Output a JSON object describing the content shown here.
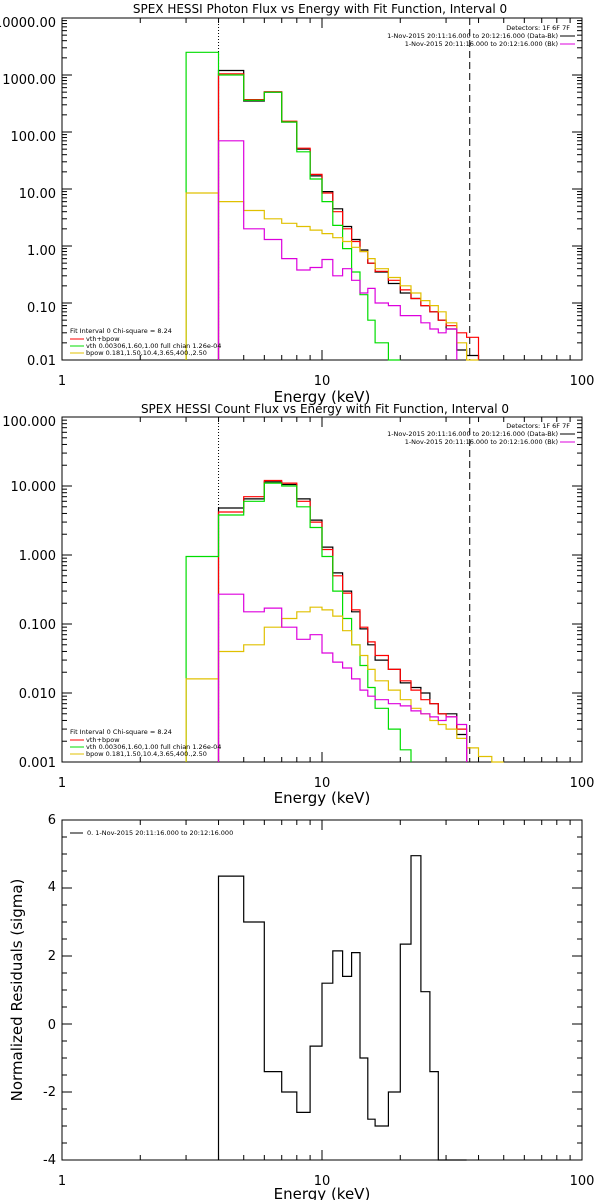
{
  "colors": {
    "data": "#000000",
    "sum": "#ff0000",
    "vth": "#00dd00",
    "bpow": "#e0c000",
    "bk": "#dd00dd"
  },
  "chart_data": [
    {
      "type": "line",
      "title": "SPEX HESSI Photon Flux vs Energy with Fit Function, Interval 0",
      "xlabel": "Energy (keV)",
      "ylabel": "",
      "xscale": "log",
      "yscale": "log",
      "xlim": [
        1,
        100
      ],
      "ylim": [
        0.01,
        10000
      ],
      "x_ticks": [
        "1",
        "10",
        "100"
      ],
      "y_ticks": [
        "0.01",
        "0.10",
        "1.00",
        "10.00",
        "100.00",
        "1000.00",
        "10000.00"
      ],
      "x_tick_values": [
        1,
        10,
        100
      ],
      "y_tick_values": [
        0.01,
        0.1,
        1,
        10,
        100,
        1000,
        10000
      ],
      "energy_range": [
        4.0,
        37.0
      ],
      "legend_topright": [
        "Detectors: 1F 6F 7F",
        "1-Nov-2015 20:11:16.000 to 20:12:16.000 (Data-Bk)",
        "1-Nov-2015 20:11:16.000 to 20:12:16.000 (Bk)"
      ],
      "legend_bottomleft": [
        "Fit Interval 0   Chi-square = 8.24",
        "vth+bpow",
        "vth 0.00306,1.60,1.00  full chian 1.26e-04",
        "bpow 0.181,1.50,10.4,3.65,400.,2.50"
      ],
      "edges": [
        3.0,
        4.0,
        5.0,
        6.0,
        7.0,
        8.0,
        9.0,
        10.0,
        11.0,
        12.0,
        13.0,
        14.0,
        15.0,
        16.0,
        18.0,
        20.0,
        22.0,
        24.0,
        26.0,
        28.0,
        30.0,
        33.0,
        36.0,
        40.0
      ],
      "series": [
        {
          "name": "1-Nov-2015 20:11:16.000 to 20:12:16.000 (Data-Bk)",
          "color_key": "data",
          "values": [
            null,
            1200,
            350,
            500,
            150,
            50,
            17,
            9,
            4.5,
            2.2,
            1.3,
            0.85,
            0.5,
            0.35,
            0.22,
            0.15,
            0.12,
            0.09,
            0.07,
            0.05,
            0.035,
            0.015,
            0.012
          ]
        },
        {
          "name": "vth+bpow",
          "color_key": "sum",
          "values": [
            null,
            1050,
            370,
            510,
            155,
            52,
            18,
            8.5,
            4.0,
            2.0,
            1.2,
            0.8,
            0.5,
            0.36,
            0.25,
            0.17,
            0.12,
            0.09,
            0.07,
            0.05,
            0.04,
            0.03,
            0.025
          ]
        },
        {
          "name": "vth 0.00306,1.60,1.00  full chian 1.26e-04",
          "color_key": "vth",
          "values": [
            2500,
            1000,
            360,
            500,
            150,
            45,
            15,
            6,
            2.3,
            0.9,
            0.35,
            0.14,
            0.05,
            0.02,
            0.01,
            null,
            null,
            null,
            null,
            null,
            null,
            null,
            null
          ]
        },
        {
          "name": "bpow 0.181,1.50,10.4,3.65,400.,2.50",
          "color_key": "bpow",
          "values": [
            8.5,
            6.0,
            4.2,
            3.0,
            2.5,
            2.2,
            1.9,
            1.65,
            1.4,
            1.2,
            0.95,
            0.8,
            0.6,
            0.4,
            0.28,
            0.2,
            0.15,
            0.11,
            0.09,
            0.07,
            0.045,
            0.02,
            0.01
          ]
        },
        {
          "name": "1-Nov-2015 20:11:16.000 to 20:12:16.000 (Bk)",
          "color_key": "bk",
          "values": [
            null,
            70,
            2.0,
            1.3,
            0.6,
            0.38,
            0.42,
            0.58,
            0.3,
            0.4,
            0.25,
            0.15,
            0.18,
            0.1,
            0.09,
            0.06,
            0.06,
            0.045,
            0.035,
            0.03,
            0.035,
            null,
            null
          ]
        }
      ]
    },
    {
      "type": "line",
      "title": "SPEX HESSI Count Flux vs Energy with Fit Function, Interval 0",
      "xlabel": "Energy (keV)",
      "ylabel": "",
      "xscale": "log",
      "yscale": "log",
      "xlim": [
        1,
        100
      ],
      "ylim": [
        0.001,
        100
      ],
      "x_ticks": [
        "1",
        "10",
        "100"
      ],
      "y_ticks": [
        "0.001",
        "0.010",
        "0.100",
        "1.000",
        "10.000",
        "100.000"
      ],
      "x_tick_values": [
        1,
        10,
        100
      ],
      "y_tick_values": [
        0.001,
        0.01,
        0.1,
        1,
        10,
        100
      ],
      "energy_range": [
        4.0,
        37.0
      ],
      "legend_topright": [
        "Detectors: 1F 6F 7F",
        "1-Nov-2015 20:11:16.000 to 20:12:16.000 (Data-Bk)",
        "1-Nov-2015 20:11:16.000 to 20:12:16.000 (Bk)"
      ],
      "legend_bottomleft": [
        "Fit Interval 0   Chi-square = 8.24",
        "vth+bpow",
        "vth 0.00306,1.60,1.00  full chian 1.26e-04",
        "bpow 0.181,1.50,10.4,3.65,400.,2.50"
      ],
      "edges": [
        3.0,
        4.0,
        5.0,
        6.0,
        7.0,
        8.0,
        9.0,
        10.0,
        11.0,
        12.0,
        13.0,
        14.0,
        15.0,
        16.0,
        18.0,
        20.0,
        22.0,
        24.0,
        26.0,
        28.0,
        30.0,
        33.0,
        36.0,
        40.0,
        45.0,
        50.0
      ],
      "series": [
        {
          "name": "1-Nov-2015 20:11:16.000 to 20:12:16.000 (Data-Bk)",
          "color_key": "data",
          "values": [
            null,
            4.8,
            6.5,
            11.5,
            10.5,
            6.5,
            3.2,
            1.3,
            0.55,
            0.3,
            0.15,
            0.085,
            0.05,
            0.03,
            0.022,
            0.014,
            0.012,
            0.01,
            0.007,
            0.005,
            0.005,
            0.0025,
            null,
            null,
            null
          ]
        },
        {
          "name": "vth+bpow",
          "color_key": "sum",
          "values": [
            null,
            4.2,
            7.0,
            12.0,
            11.0,
            6.0,
            3.0,
            1.2,
            0.5,
            0.28,
            0.16,
            0.09,
            0.055,
            0.035,
            0.022,
            0.015,
            0.011,
            0.008,
            0.007,
            0.005,
            0.0045,
            0.003,
            null,
            null,
            null
          ]
        },
        {
          "name": "vth 0.00306,1.60,1.00  full chian 1.26e-04",
          "color_key": "vth",
          "values": [
            0.95,
            3.8,
            6.0,
            11.0,
            10.0,
            5.0,
            2.5,
            0.95,
            0.3,
            0.12,
            0.05,
            0.025,
            0.012,
            0.006,
            0.003,
            0.0015,
            null,
            null,
            null,
            null,
            null,
            null,
            null,
            null,
            null
          ]
        },
        {
          "name": "bpow 0.181,1.50,10.4,3.65,400.,2.50",
          "color_key": "bpow",
          "values": [
            0.016,
            0.04,
            0.05,
            0.09,
            0.12,
            0.15,
            0.175,
            0.16,
            0.13,
            0.08,
            0.05,
            0.035,
            0.022,
            0.015,
            0.011,
            0.008,
            0.006,
            0.005,
            0.004,
            0.0035,
            0.003,
            0.0022,
            0.0016,
            0.0012,
            0.0009
          ]
        },
        {
          "name": "1-Nov-2015 20:11:16.000 to 20:12:16.000 (Bk)",
          "color_key": "bk",
          "values": [
            null,
            0.27,
            0.15,
            0.17,
            0.09,
            0.06,
            0.07,
            0.038,
            0.028,
            0.023,
            0.016,
            0.011,
            0.009,
            0.008,
            0.007,
            0.0065,
            0.0055,
            0.005,
            0.0045,
            0.004,
            0.0045,
            0.0035,
            null,
            null,
            null
          ]
        }
      ]
    },
    {
      "type": "line",
      "title": "",
      "xlabel": "Energy (keV)",
      "ylabel": "Normalized Residuals (sigma)",
      "xscale": "log",
      "yscale": "linear",
      "xlim": [
        1,
        100
      ],
      "ylim": [
        -4,
        6
      ],
      "x_ticks": [
        "1",
        "10",
        "100"
      ],
      "y_ticks": [
        "-4",
        "-2",
        "0",
        "2",
        "4",
        "6"
      ],
      "x_tick_values": [
        1,
        10,
        100
      ],
      "y_tick_values": [
        -4,
        -2,
        0,
        2,
        4,
        6
      ],
      "legend_topleft": [
        "0.  1-Nov-2015 20:11:16.000 to 20:12:16.000"
      ],
      "edges": [
        4.0,
        5.0,
        6.0,
        7.0,
        8.0,
        9.0,
        10.0,
        11.0,
        12.0,
        13.0,
        14.0,
        15.0,
        16.0,
        18.0,
        20.0,
        22.0,
        24.0,
        26.0,
        28.0,
        30.0,
        33.0,
        36.0
      ],
      "series": [
        {
          "name": "0.  1-Nov-2015 20:11:16.000 to 20:12:16.000",
          "color_key": "data",
          "values": [
            4.35,
            3.0,
            -1.4,
            -2.0,
            -2.6,
            -0.65,
            1.2,
            2.15,
            1.4,
            2.1,
            -1.0,
            -2.8,
            -3.0,
            -2.0,
            2.35,
            4.95,
            0.95,
            -1.4,
            -4.0,
            -4.0,
            -4.0
          ]
        }
      ]
    }
  ]
}
